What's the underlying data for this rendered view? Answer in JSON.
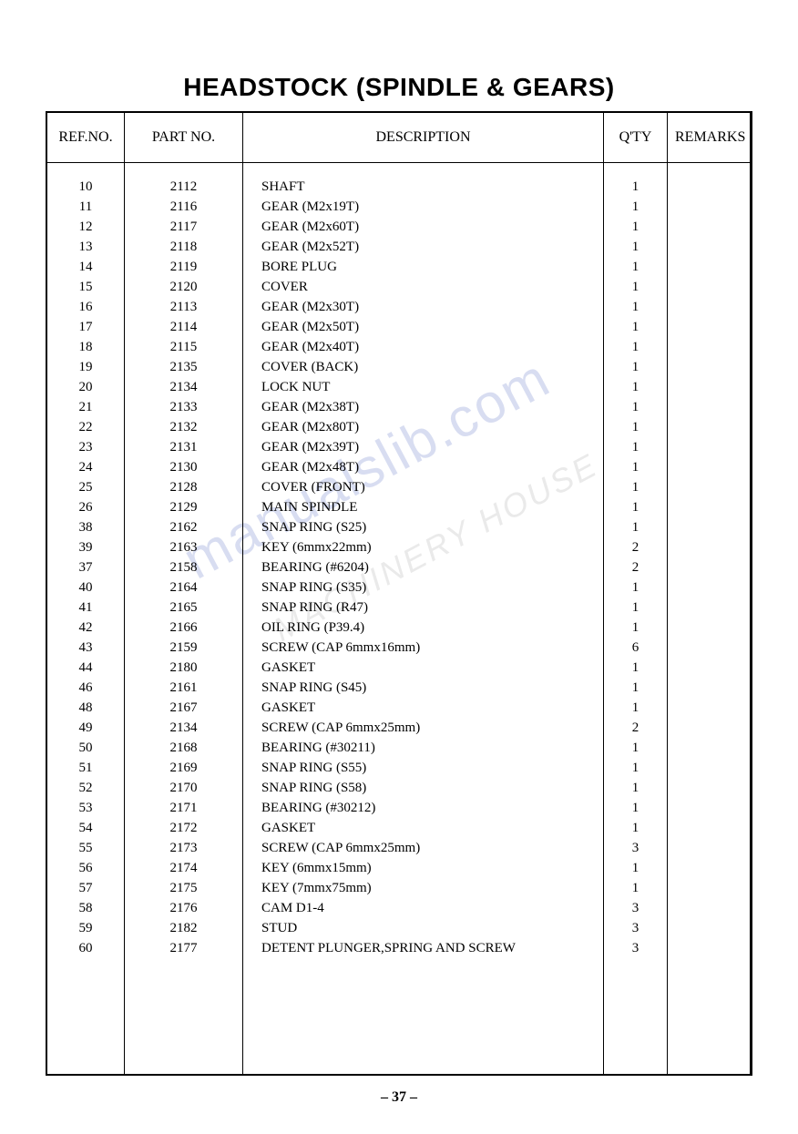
{
  "title": "HEADSTOCK (SPINDLE & GEARS)",
  "headers": {
    "refno": "REF.NO.",
    "partno": "PART   NO.",
    "description": "DESCRIPTION",
    "qty": "Q'TY",
    "remarks": "REMARKS"
  },
  "rows": [
    {
      "refno": "10",
      "partno": "2112",
      "description": "SHAFT",
      "qty": "1",
      "remarks": ""
    },
    {
      "refno": "11",
      "partno": "2116",
      "description": "GEAR (M2x19T)",
      "qty": "1",
      "remarks": ""
    },
    {
      "refno": "12",
      "partno": "2117",
      "description": "GEAR (M2x60T)",
      "qty": "1",
      "remarks": ""
    },
    {
      "refno": "13",
      "partno": "2118",
      "description": "GEAR (M2x52T)",
      "qty": "1",
      "remarks": ""
    },
    {
      "refno": "14",
      "partno": "2119",
      "description": "BORE PLUG",
      "qty": "1",
      "remarks": ""
    },
    {
      "refno": "15",
      "partno": "2120",
      "description": "COVER",
      "qty": "1",
      "remarks": ""
    },
    {
      "refno": "16",
      "partno": "2113",
      "description": "GEAR (M2x30T)",
      "qty": "1",
      "remarks": ""
    },
    {
      "refno": "17",
      "partno": "2114",
      "description": "GEAR (M2x50T)",
      "qty": "1",
      "remarks": ""
    },
    {
      "refno": "18",
      "partno": "2115",
      "description": "GEAR (M2x40T)",
      "qty": "1",
      "remarks": ""
    },
    {
      "refno": "19",
      "partno": "2135",
      "description": "COVER (BACK)",
      "qty": "1",
      "remarks": ""
    },
    {
      "refno": "20",
      "partno": "2134",
      "description": "LOCK NUT",
      "qty": "1",
      "remarks": ""
    },
    {
      "refno": "21",
      "partno": "2133",
      "description": "GEAR (M2x38T)",
      "qty": "1",
      "remarks": ""
    },
    {
      "refno": "22",
      "partno": "2132",
      "description": "GEAR (M2x80T)",
      "qty": "1",
      "remarks": ""
    },
    {
      "refno": "23",
      "partno": "2131",
      "description": "GEAR (M2x39T)",
      "qty": "1",
      "remarks": ""
    },
    {
      "refno": "24",
      "partno": "2130",
      "description": "GEAR (M2x48T)",
      "qty": "1",
      "remarks": ""
    },
    {
      "refno": "25",
      "partno": "2128",
      "description": "COVER (FRONT)",
      "qty": "1",
      "remarks": ""
    },
    {
      "refno": "26",
      "partno": "2129",
      "description": "MAIN SPINDLE",
      "qty": "1",
      "remarks": ""
    },
    {
      "refno": "38",
      "partno": "2162",
      "description": "SNAP RING (S25)",
      "qty": "1",
      "remarks": ""
    },
    {
      "refno": "39",
      "partno": "2163",
      "description": "KEY (6mmx22mm)",
      "qty": "2",
      "remarks": ""
    },
    {
      "refno": "37",
      "partno": "2158",
      "description": "BEARING (#6204)",
      "qty": "2",
      "remarks": ""
    },
    {
      "refno": "40",
      "partno": "2164",
      "description": "SNAP RING (S35)",
      "qty": "1",
      "remarks": ""
    },
    {
      "refno": "41",
      "partno": "2165",
      "description": "SNAP RING (R47)",
      "qty": "1",
      "remarks": ""
    },
    {
      "refno": "42",
      "partno": "2166",
      "description": "OIL RING (P39.4)",
      "qty": "1",
      "remarks": ""
    },
    {
      "refno": "43",
      "partno": "2159",
      "description": "SCREW (CAP 6mmx16mm)",
      "qty": "6",
      "remarks": ""
    },
    {
      "refno": "44",
      "partno": "2180",
      "description": "GASKET",
      "qty": "1",
      "remarks": ""
    },
    {
      "refno": "46",
      "partno": "2161",
      "description": "SNAP RING (S45)",
      "qty": "1",
      "remarks": ""
    },
    {
      "refno": "48",
      "partno": "2167",
      "description": "GASKET",
      "qty": "1",
      "remarks": ""
    },
    {
      "refno": "49",
      "partno": "2134",
      "description": "SCREW (CAP 6mmx25mm)",
      "qty": "2",
      "remarks": ""
    },
    {
      "refno": "50",
      "partno": "2168",
      "description": "BEARING (#30211)",
      "qty": "1",
      "remarks": ""
    },
    {
      "refno": "51",
      "partno": "2169",
      "description": "SNAP RING (S55)",
      "qty": "1",
      "remarks": ""
    },
    {
      "refno": "52",
      "partno": "2170",
      "description": "SNAP RING (S58)",
      "qty": "1",
      "remarks": ""
    },
    {
      "refno": "53",
      "partno": "2171",
      "description": "BEARING (#30212)",
      "qty": "1",
      "remarks": ""
    },
    {
      "refno": "54",
      "partno": "2172",
      "description": "GASKET",
      "qty": "1",
      "remarks": ""
    },
    {
      "refno": "55",
      "partno": "2173",
      "description": "SCREW (CAP 6mmx25mm)",
      "qty": "3",
      "remarks": ""
    },
    {
      "refno": "56",
      "partno": "2174",
      "description": "KEY (6mmx15mm)",
      "qty": "1",
      "remarks": ""
    },
    {
      "refno": "57",
      "partno": "2175",
      "description": "KEY (7mmx75mm)",
      "qty": "1",
      "remarks": ""
    },
    {
      "refno": "58",
      "partno": "2176",
      "description": "CAM D1-4",
      "qty": "3",
      "remarks": ""
    },
    {
      "refno": "59",
      "partno": "2182",
      "description": "STUD",
      "qty": "3",
      "remarks": ""
    },
    {
      "refno": "60",
      "partno": "2177",
      "description": "DETENT PLUNGER,SPRING AND SCREW",
      "qty": "3",
      "remarks": ""
    }
  ],
  "page_number": "– 37 –",
  "styling": {
    "title_font_family": "Arial",
    "title_font_size": 28,
    "title_font_weight": "bold",
    "body_font_family": "Times New Roman",
    "body_font_size": 15,
    "line_height": 22,
    "border_color": "#000000",
    "background_color": "#ffffff",
    "text_color": "#000000",
    "watermark_color": "rgba(100, 120, 200, 0.25)",
    "column_widths": {
      "refno": 85,
      "partno": 130,
      "qty": 70,
      "remarks": 90
    }
  }
}
